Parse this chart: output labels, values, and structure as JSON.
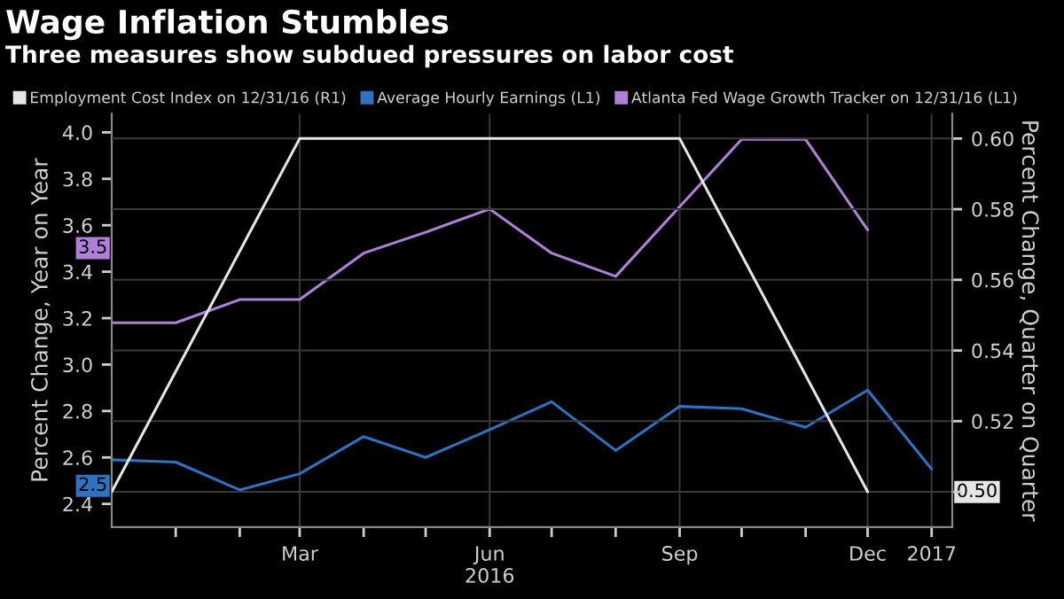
{
  "chart_data": {
    "type": "line",
    "title": "Wage Inflation Stumbles",
    "subtitle": "Three measures show subdued pressures on labor cost",
    "ylabel": "Percent Change, Year on Year",
    "y2label": "Percent Change, Quarter on Quarter",
    "series": [
      {
        "name": "Employment Cost Index on 12/31/16 (R1)",
        "color": "#e6e6e6",
        "axis": "y2",
        "x": [
          "2015-12",
          "2016-03",
          "2016-06",
          "2016-09",
          "2016-12"
        ],
        "values": [
          0.5,
          0.6,
          0.6,
          0.6,
          0.5
        ]
      },
      {
        "name": "Average Hourly Earnings (L1)",
        "color": "#2f72c0",
        "x": [
          "2015-12",
          "2016-01",
          "2016-02",
          "2016-03",
          "2016-04",
          "2016-05",
          "2016-06",
          "2016-07",
          "2016-08",
          "2016-09",
          "2016-10",
          "2016-11",
          "2016-12",
          "2017-01"
        ],
        "values": [
          2.59,
          2.58,
          2.46,
          2.53,
          2.69,
          2.6,
          2.72,
          2.84,
          2.63,
          2.82,
          2.81,
          2.73,
          2.89,
          2.55
        ]
      },
      {
        "name": "Atlanta Fed Wage Growth Tracker on 12/31/16 (L1)",
        "color": "#b07fd8",
        "x": [
          "2015-12",
          "2016-01",
          "2016-02",
          "2016-03",
          "2016-04",
          "2016-05",
          "2016-06",
          "2016-07",
          "2016-08",
          "2016-09",
          "2016-10",
          "2016-11",
          "2016-12"
        ],
        "values": [
          3.18,
          3.18,
          3.28,
          3.28,
          3.48,
          3.57,
          3.67,
          3.48,
          3.38,
          3.68,
          3.97,
          3.97,
          3.58
        ]
      }
    ],
    "xlim": [
      "2015-12",
      "2017-01-11"
    ],
    "xticks": [
      {
        "value": "2016-01",
        "label": null
      },
      {
        "value": "2016-02",
        "label": null
      },
      {
        "value": "2016-03",
        "label": "Mar"
      },
      {
        "value": "2016-04",
        "label": null
      },
      {
        "value": "2016-05",
        "label": null
      },
      {
        "value": "2016-06",
        "label": "Jun\n2016"
      },
      {
        "value": "2016-07",
        "label": null
      },
      {
        "value": "2016-08",
        "label": null
      },
      {
        "value": "2016-09",
        "label": "Sep"
      },
      {
        "value": "2016-10",
        "label": null
      },
      {
        "value": "2016-11",
        "label": null
      },
      {
        "value": "2016-12",
        "label": "Dec"
      },
      {
        "value": "2017-01",
        "label": "2017"
      }
    ],
    "annotations": [
      "3.5",
      "2.5",
      "0.50"
    ],
    "ylim": [
      2.3,
      4.08
    ],
    "yticks": [
      {
        "value": 2.4,
        "label": "2.4"
      },
      {
        "value": 2.6,
        "label": "2.6"
      },
      {
        "value": 2.8,
        "label": "2.8"
      },
      {
        "value": 3.0,
        "label": "3.0"
      },
      {
        "value": 3.2,
        "label": "3.2"
      },
      {
        "value": 3.4,
        "label": "3.4"
      },
      {
        "value": 3.6,
        "label": "3.6"
      },
      {
        "value": 3.8,
        "label": "3.8"
      },
      {
        "value": 4.0,
        "label": "4.0"
      }
    ],
    "y2lim": [
      0.49,
      0.607
    ],
    "y2ticks": [
      {
        "value": 0.5,
        "label": null
      },
      {
        "value": 0.52,
        "label": "0.52"
      },
      {
        "value": 0.54,
        "label": "0.54"
      },
      {
        "value": 0.56,
        "label": "0.56"
      },
      {
        "value": 0.58,
        "label": "0.58"
      },
      {
        "value": 0.6,
        "label": "0.60"
      }
    ],
    "grid": true,
    "legend": "top left",
    "marker": "none",
    "line_style": "solid"
  }
}
